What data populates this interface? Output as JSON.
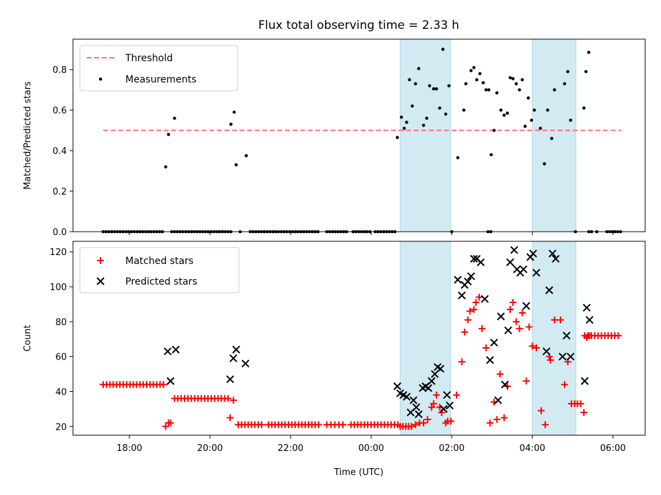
{
  "chart_data": {
    "type": "scatter",
    "title": "Flux total observing time = 2.33 h",
    "xlabel": "Time (UTC)",
    "x_ticks": [
      {
        "hours": 18,
        "label": "18:00"
      },
      {
        "hours": 20,
        "label": "20:00"
      },
      {
        "hours": 22,
        "label": "22:00"
      },
      {
        "hours": 24,
        "label": "00:00"
      },
      {
        "hours": 26,
        "label": "02:00"
      },
      {
        "hours": 28,
        "label": "04:00"
      },
      {
        "hours": 30,
        "label": "06:00"
      }
    ],
    "xlim": [
      16.6,
      30.8
    ],
    "highlight_color": "#add8e6",
    "highlight_intervals": [
      [
        24.72,
        25.97
      ],
      [
        28.0,
        29.08
      ]
    ],
    "panels": [
      {
        "ylabel": "Matched/Predicted stars",
        "ylim": [
          0,
          0.95
        ],
        "y_ticks": [
          {
            "v": 0,
            "label": "0.0"
          },
          {
            "v": 0.2,
            "label": "0.2"
          },
          {
            "v": 0.4,
            "label": "0.4"
          },
          {
            "v": 0.6,
            "label": "0.6"
          },
          {
            "v": 0.8,
            "label": "0.8"
          }
        ],
        "legend_position": "top-left",
        "threshold": {
          "name": "Threshold",
          "value": 0.5,
          "x_range": [
            17.35,
            30.2
          ],
          "color": "#ff7070"
        },
        "measurements": {
          "name": "Measurements",
          "color": "#000000",
          "zero_segments": [
            [
              17.35,
              18.85
            ],
            [
              19.05,
              20.55
            ],
            [
              20.75,
              20.8
            ],
            [
              21.0,
              22.7
            ],
            [
              22.9,
              23.4
            ],
            [
              23.55,
              24.0
            ],
            [
              24.1,
              24.65
            ],
            [
              26.0,
              26.05
            ],
            [
              26.9,
              27.0
            ],
            [
              29.07,
              29.13
            ],
            [
              29.4,
              29.5
            ],
            [
              29.6,
              29.65
            ],
            [
              29.85,
              30.0
            ],
            [
              30.05,
              30.2
            ]
          ],
          "points": [
            [
              18.9,
              0.32
            ],
            [
              18.97,
              0.48
            ],
            [
              19.12,
              0.56
            ],
            [
              20.52,
              0.53
            ],
            [
              20.6,
              0.59
            ],
            [
              20.65,
              0.33
            ],
            [
              20.9,
              0.375
            ],
            [
              24.65,
              0.465
            ],
            [
              24.75,
              0.565
            ],
            [
              24.82,
              0.51
            ],
            [
              24.88,
              0.54
            ],
            [
              24.95,
              0.75
            ],
            [
              25.02,
              0.62
            ],
            [
              25.1,
              0.73
            ],
            [
              25.18,
              0.805
            ],
            [
              25.3,
              0.525
            ],
            [
              25.38,
              0.56
            ],
            [
              25.45,
              0.72
            ],
            [
              25.55,
              0.705
            ],
            [
              25.62,
              0.705
            ],
            [
              25.7,
              0.61
            ],
            [
              25.78,
              0.9
            ],
            [
              25.85,
              0.58
            ],
            [
              25.93,
              0.72
            ],
            [
              26.15,
              0.365
            ],
            [
              26.3,
              0.6
            ],
            [
              26.35,
              0.73
            ],
            [
              26.48,
              0.795
            ],
            [
              26.55,
              0.81
            ],
            [
              26.62,
              0.75
            ],
            [
              26.7,
              0.78
            ],
            [
              26.78,
              0.735
            ],
            [
              26.85,
              0.7
            ],
            [
              26.92,
              0.7
            ],
            [
              26.98,
              0.38
            ],
            [
              27.05,
              0.5
            ],
            [
              27.12,
              0.685
            ],
            [
              27.22,
              0.6
            ],
            [
              27.3,
              0.575
            ],
            [
              27.38,
              0.585
            ],
            [
              27.45,
              0.76
            ],
            [
              27.52,
              0.755
            ],
            [
              27.6,
              0.73
            ],
            [
              27.68,
              0.7
            ],
            [
              27.75,
              0.75
            ],
            [
              27.82,
              0.52
            ],
            [
              27.9,
              0.66
            ],
            [
              27.98,
              0.55
            ],
            [
              28.05,
              0.6
            ],
            [
              28.2,
              0.51
            ],
            [
              28.3,
              0.335
            ],
            [
              28.38,
              0.6
            ],
            [
              28.48,
              0.46
            ],
            [
              28.55,
              0.7
            ],
            [
              28.8,
              0.73
            ],
            [
              28.88,
              0.79
            ],
            [
              28.95,
              0.55
            ],
            [
              29.28,
              0.61
            ],
            [
              29.33,
              0.79
            ],
            [
              29.4,
              0.885
            ]
          ]
        }
      },
      {
        "ylabel": "Count",
        "ylim": [
          15,
          126
        ],
        "y_ticks": [
          {
            "v": 20,
            "label": "20"
          },
          {
            "v": 40,
            "label": "40"
          },
          {
            "v": 60,
            "label": "60"
          },
          {
            "v": 80,
            "label": "80"
          },
          {
            "v": 100,
            "label": "100"
          },
          {
            "v": 120,
            "label": "120"
          }
        ],
        "legend_position": "top-left",
        "series": [
          {
            "name": "Matched stars",
            "marker": "plus",
            "color": "#ff0000",
            "runs": [
              {
                "from": 17.35,
                "to": 18.85,
                "y": 44,
                "step": 0.083
              },
              {
                "from": 19.12,
                "to": 20.45,
                "y": 36,
                "step": 0.083
              },
              {
                "from": 20.7,
                "to": 21.35,
                "y": 21,
                "step": 0.083
              },
              {
                "from": 21.45,
                "to": 22.7,
                "y": 21,
                "step": 0.083
              },
              {
                "from": 22.9,
                "to": 23.3,
                "y": 21,
                "step": 0.1
              },
              {
                "from": 23.5,
                "to": 24.7,
                "y": 21,
                "step": 0.083
              },
              {
                "from": 24.72,
                "to": 25.0,
                "y": 20,
                "step": 0.07
              },
              {
                "from": 29.3,
                "to": 30.2,
                "y": 72,
                "step": 0.083
              }
            ],
            "points": [
              [
                18.9,
                20
              ],
              [
                18.97,
                22
              ],
              [
                19.02,
                22
              ],
              [
                20.5,
                25
              ],
              [
                20.58,
                35
              ],
              [
                25.1,
                21
              ],
              [
                25.2,
                22
              ],
              [
                25.3,
                22
              ],
              [
                25.4,
                24
              ],
              [
                25.5,
                31
              ],
              [
                25.55,
                33
              ],
              [
                25.62,
                38
              ],
              [
                25.7,
                31
              ],
              [
                25.75,
                28
              ],
              [
                25.85,
                22
              ],
              [
                25.9,
                23
              ],
              [
                25.98,
                23
              ],
              [
                26.12,
                38
              ],
              [
                26.25,
                57
              ],
              [
                26.32,
                74
              ],
              [
                26.4,
                81
              ],
              [
                26.45,
                86
              ],
              [
                26.55,
                87
              ],
              [
                26.6,
                91
              ],
              [
                26.68,
                94
              ],
              [
                26.75,
                76
              ],
              [
                26.85,
                65
              ],
              [
                26.95,
                22
              ],
              [
                27.05,
                34
              ],
              [
                27.12,
                24
              ],
              [
                27.2,
                50
              ],
              [
                27.3,
                25
              ],
              [
                27.38,
                43
              ],
              [
                27.45,
                87
              ],
              [
                27.52,
                91
              ],
              [
                27.6,
                80
              ],
              [
                27.68,
                76
              ],
              [
                27.75,
                85
              ],
              [
                27.85,
                46
              ],
              [
                27.92,
                77
              ],
              [
                28.0,
                66
              ],
              [
                28.1,
                65
              ],
              [
                28.22,
                29
              ],
              [
                28.32,
                21
              ],
              [
                28.42,
                60
              ],
              [
                28.45,
                58
              ],
              [
                28.55,
                81
              ],
              [
                28.7,
                81
              ],
              [
                28.8,
                44
              ],
              [
                28.88,
                57
              ],
              [
                28.97,
                33
              ],
              [
                29.05,
                33
              ],
              [
                29.12,
                33
              ],
              [
                29.2,
                33
              ],
              [
                29.28,
                28
              ],
              [
                29.35,
                71
              ],
              [
                29.42,
                72
              ]
            ]
          },
          {
            "name": "Predicted stars",
            "marker": "x",
            "color": "#000000",
            "points": [
              [
                18.95,
                63
              ],
              [
                19.02,
                46
              ],
              [
                19.15,
                64
              ],
              [
                20.5,
                47
              ],
              [
                20.58,
                59
              ],
              [
                20.65,
                64
              ],
              [
                20.88,
                56
              ],
              [
                24.65,
                43
              ],
              [
                24.72,
                39
              ],
              [
                24.8,
                38
              ],
              [
                24.88,
                37
              ],
              [
                24.98,
                28
              ],
              [
                25.05,
                35
              ],
              [
                25.12,
                31
              ],
              [
                25.18,
                27
              ],
              [
                25.28,
                42
              ],
              [
                25.35,
                43
              ],
              [
                25.42,
                42
              ],
              [
                25.5,
                46
              ],
              [
                25.58,
                50
              ],
              [
                25.65,
                54
              ],
              [
                25.72,
                53
              ],
              [
                25.8,
                30
              ],
              [
                25.88,
                38
              ],
              [
                25.95,
                32
              ],
              [
                26.15,
                104
              ],
              [
                26.25,
                95
              ],
              [
                26.32,
                101
              ],
              [
                26.4,
                103
              ],
              [
                26.48,
                106
              ],
              [
                26.55,
                116
              ],
              [
                26.62,
                116
              ],
              [
                26.72,
                114
              ],
              [
                26.82,
                93
              ],
              [
                26.95,
                58
              ],
              [
                27.05,
                68
              ],
              [
                27.15,
                35
              ],
              [
                27.22,
                83
              ],
              [
                27.32,
                44
              ],
              [
                27.4,
                75
              ],
              [
                27.45,
                114
              ],
              [
                27.55,
                121
              ],
              [
                27.62,
                110
              ],
              [
                27.7,
                108
              ],
              [
                27.78,
                110
              ],
              [
                27.85,
                89
              ],
              [
                27.95,
                117
              ],
              [
                28.02,
                119
              ],
              [
                28.1,
                108
              ],
              [
                28.35,
                63
              ],
              [
                28.42,
                98
              ],
              [
                28.5,
                119
              ],
              [
                28.58,
                116
              ],
              [
                28.75,
                60
              ],
              [
                28.85,
                72
              ],
              [
                28.95,
                60
              ],
              [
                29.3,
                46
              ],
              [
                29.35,
                88
              ],
              [
                29.42,
                81
              ]
            ]
          }
        ]
      }
    ]
  }
}
